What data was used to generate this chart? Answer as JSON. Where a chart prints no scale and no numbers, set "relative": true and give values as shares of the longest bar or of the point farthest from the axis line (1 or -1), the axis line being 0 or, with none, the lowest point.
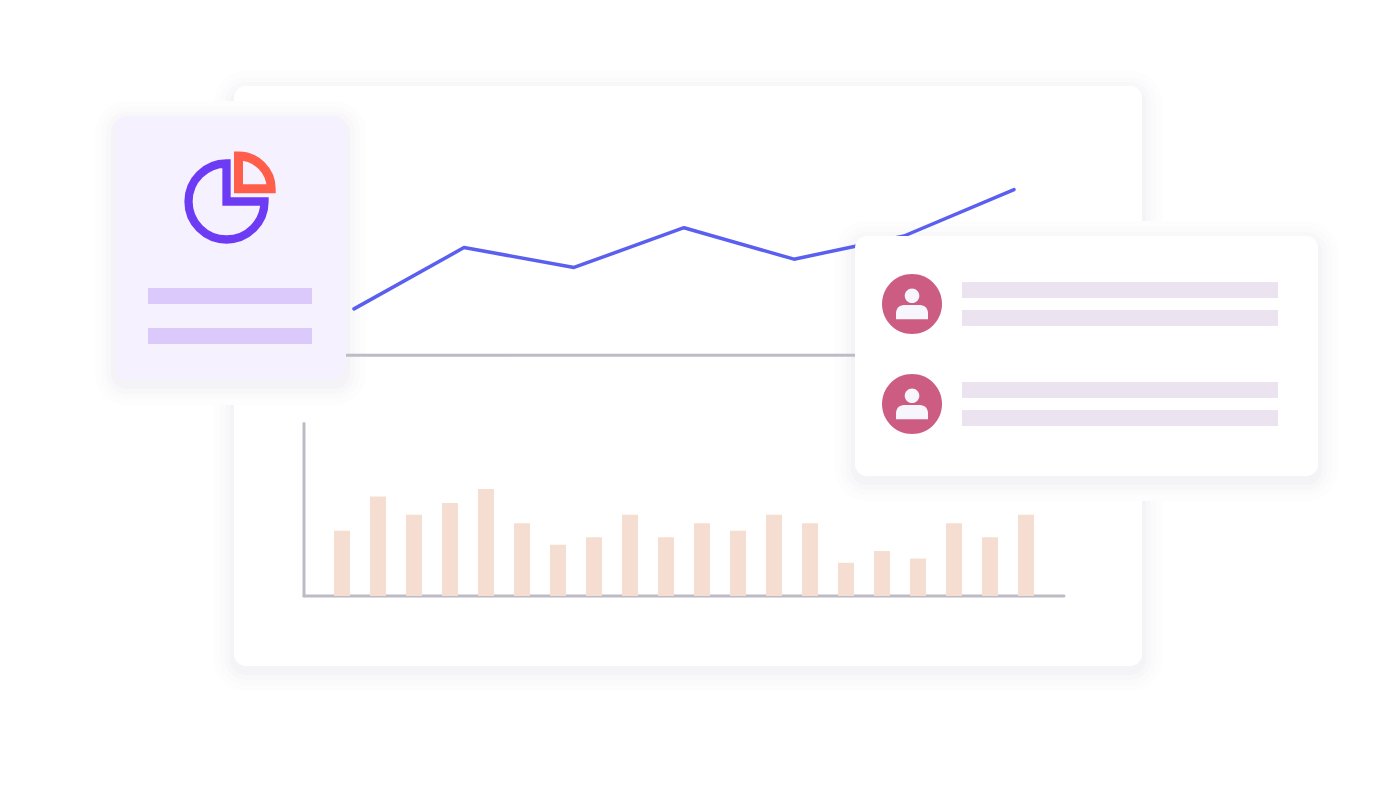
{
  "chart_data": [
    {
      "type": "line",
      "categories": [
        null,
        null,
        null,
        null,
        null,
        null,
        null
      ],
      "values": [
        0.28,
        0.65,
        0.53,
        0.77,
        0.58,
        0.72,
        1
      ],
      "color": "#5a5ff0",
      "relative": true
    },
    {
      "type": "bar",
      "categories": [
        null,
        null,
        null,
        null,
        null,
        null,
        null,
        null,
        null,
        null,
        null,
        null,
        null,
        null,
        null,
        null,
        null,
        null,
        null,
        null
      ],
      "values": [
        0.61,
        0.93,
        0.76,
        0.87,
        1,
        0.68,
        0.48,
        0.55,
        0.76,
        0.55,
        0.68,
        0.61,
        0.76,
        0.68,
        0.31,
        0.42,
        0.35,
        0.68,
        0.55,
        0.76
      ],
      "color": "#f5ddd1",
      "relative": true
    }
  ]
}
